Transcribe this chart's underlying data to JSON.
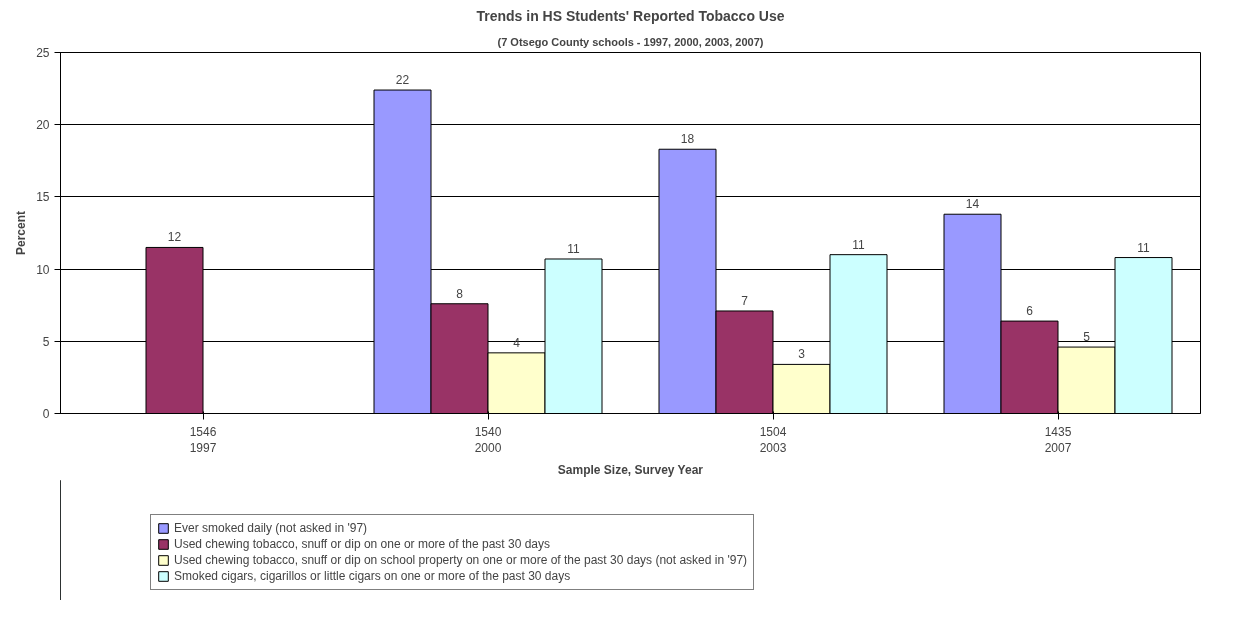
{
  "chart_data": {
    "type": "bar",
    "title": "Trends in HS Students' Reported Tobacco Use",
    "subtitle": "(7 Otsego County schools - 1997, 2000, 2003, 2007)",
    "xlabel": "Sample Size, Survey Year",
    "ylabel": "Percent",
    "categories": [
      "1546\n1997",
      "1540\n2000",
      "1504\n2003",
      "1435\n2007"
    ],
    "series": [
      {
        "name": "Ever smoked daily (not asked in '97)",
        "color": "#9999ff",
        "values": [
          null,
          22.4,
          18.3,
          13.8
        ],
        "value_labels": [
          null,
          "22",
          "18",
          "14"
        ]
      },
      {
        "name": "Used chewing tobacco, snuff or dip on one or more of the past 30 days",
        "color": "#993366",
        "values": [
          11.5,
          7.6,
          7.1,
          6.4
        ],
        "value_labels": [
          "12",
          "8",
          "7",
          "6"
        ]
      },
      {
        "name": "Used chewing tobacco, snuff or dip on school property on one or more of the past 30 days (not asked in '97)",
        "color": "#ffffcc",
        "values": [
          null,
          4.2,
          3.4,
          4.6
        ],
        "value_labels": [
          null,
          "4",
          "3",
          "5"
        ]
      },
      {
        "name": "Smoked cigars, cigarillos or little cigars on one or more of the past 30 days",
        "color": "#ccffff",
        "values": [
          null,
          10.7,
          11.0,
          10.8
        ],
        "value_labels": [
          null,
          "11",
          "11",
          "11"
        ]
      }
    ],
    "ylim": [
      0,
      25
    ],
    "yticks": [
      0,
      5,
      10,
      15,
      20,
      25
    ],
    "grid": "y",
    "legend": "bottom"
  }
}
